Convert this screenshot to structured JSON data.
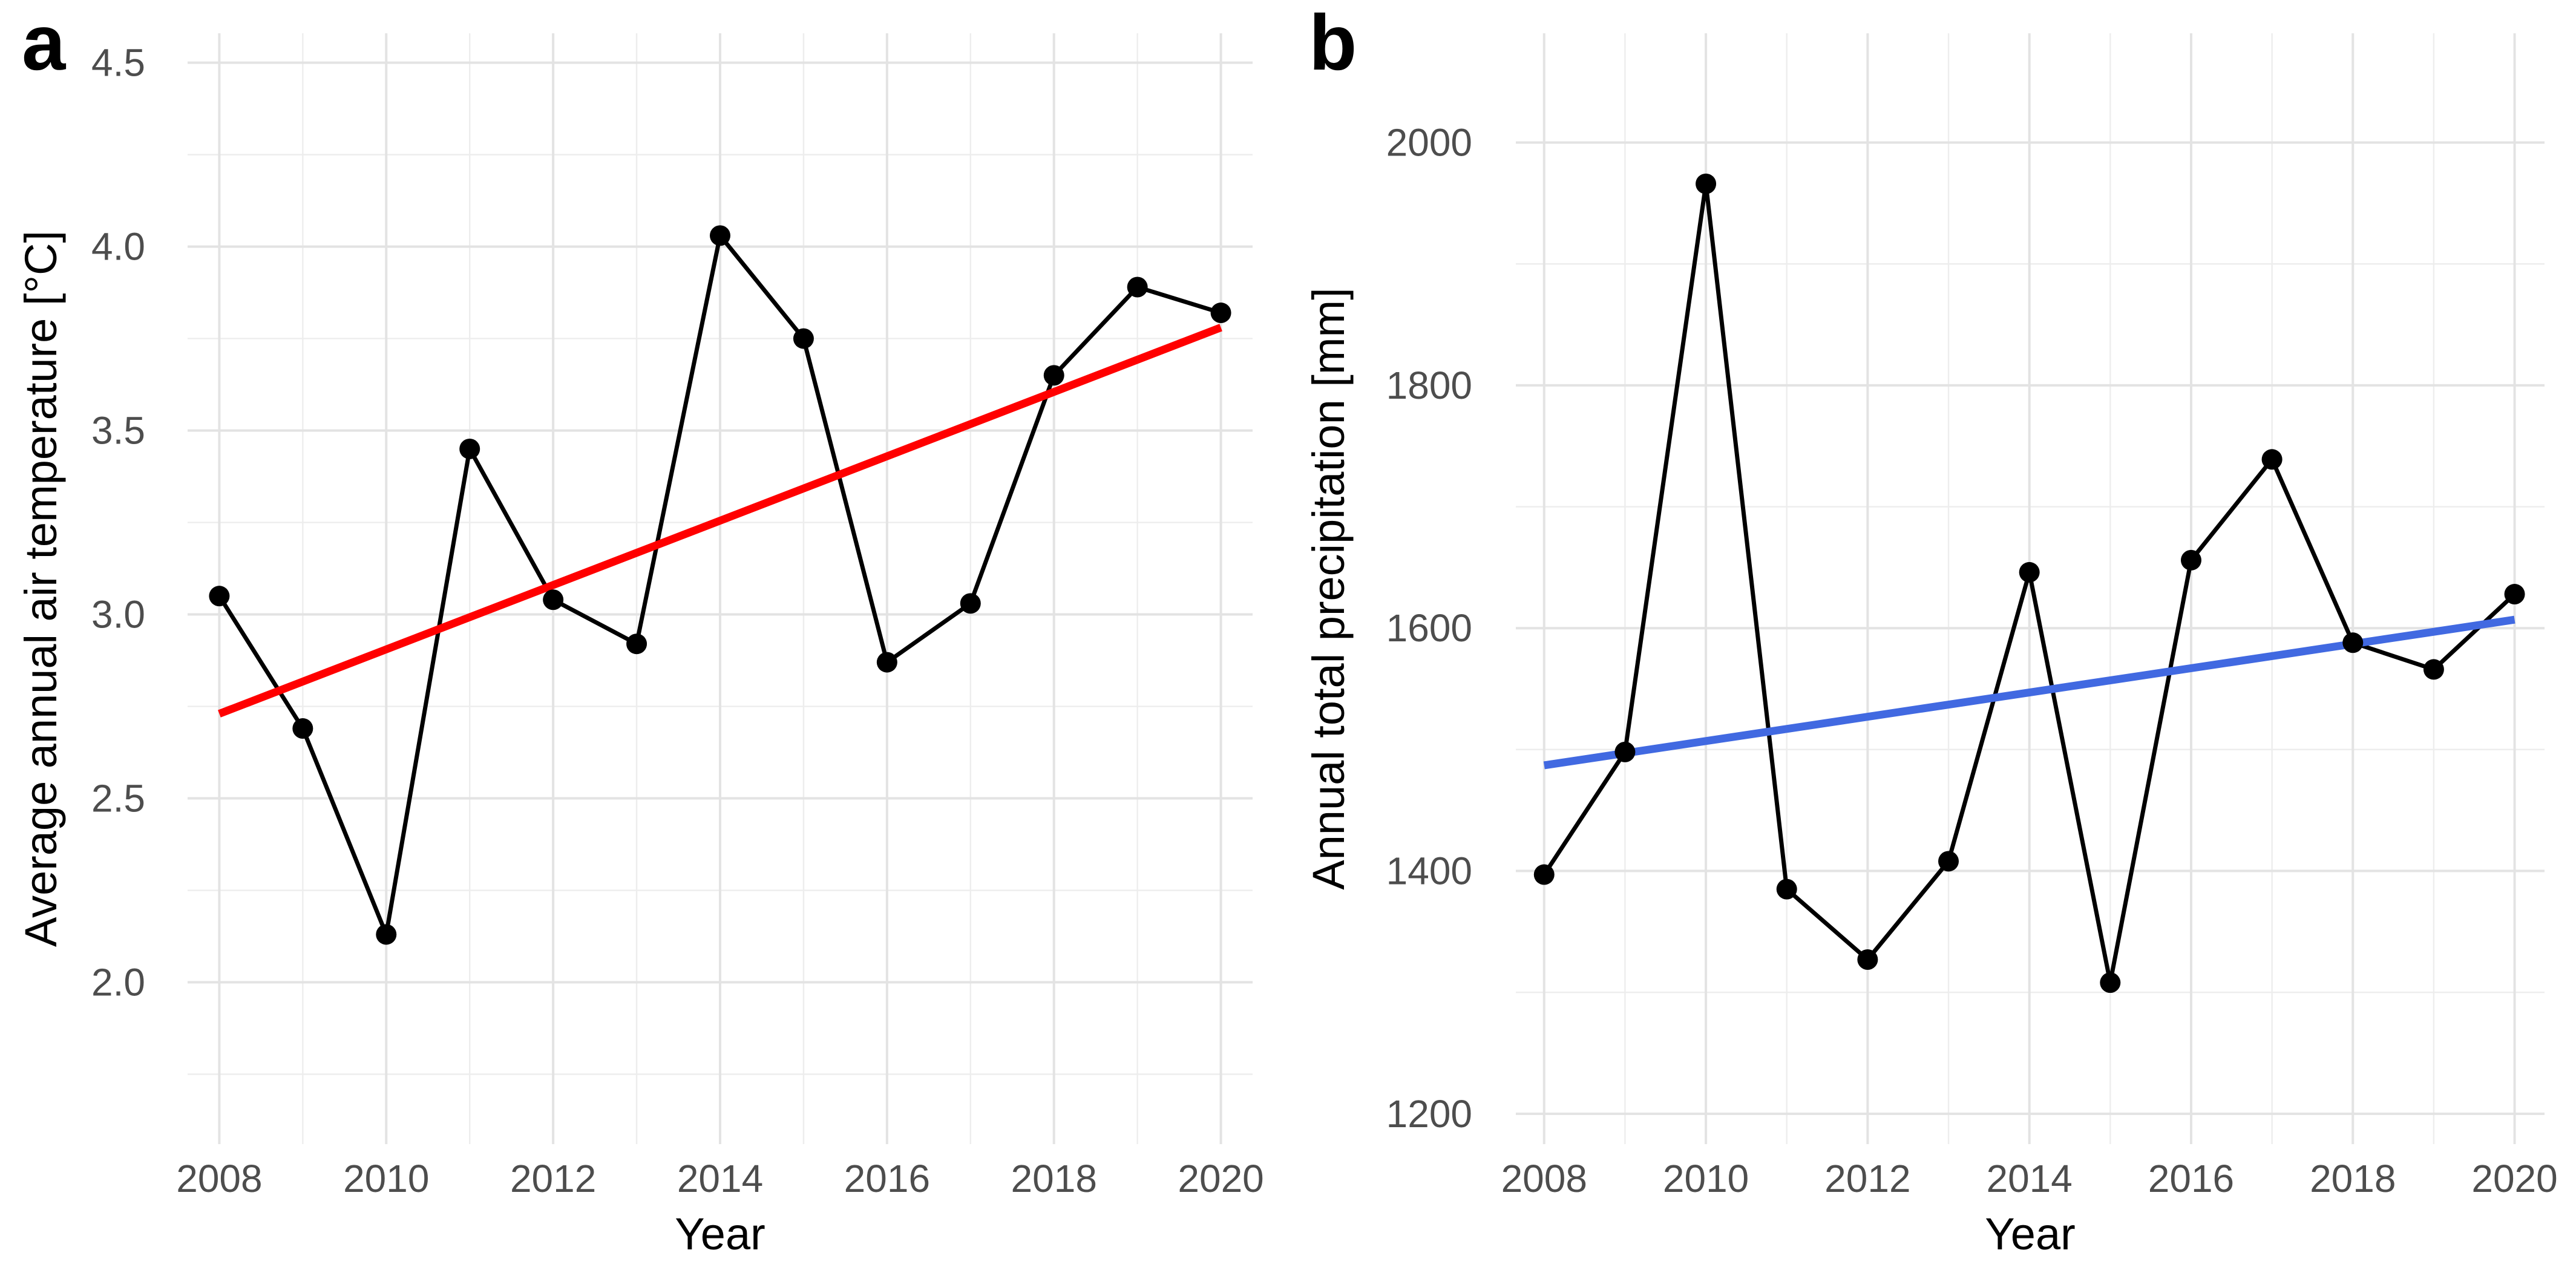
{
  "figure": {
    "background": "#FFFFFF",
    "panels": [
      {
        "tag": "a",
        "x_label": "Year",
        "y_label": "Average annual air temperature [°C]"
      },
      {
        "tag": "b",
        "x_label": "Year",
        "y_label": "Annual total precipitation [mm]"
      }
    ]
  },
  "chart_data": [
    {
      "type": "line",
      "panel": "a",
      "title": "",
      "xlabel": "Year",
      "ylabel": "Average annual air temperature [°C]",
      "x": [
        2008,
        2009,
        2010,
        2011,
        2012,
        2013,
        2014,
        2015,
        2016,
        2017,
        2018,
        2019,
        2020
      ],
      "series": [
        {
          "name": "Average annual air temperature",
          "color": "#000000",
          "marker": "point",
          "values": [
            3.05,
            2.69,
            2.13,
            3.45,
            3.04,
            2.92,
            4.03,
            3.75,
            2.87,
            3.03,
            3.65,
            3.89,
            3.82
          ]
        }
      ],
      "trend": {
        "name": "Linear trend",
        "color": "#FF0000",
        "x_start": 2008,
        "y_start": 2.73,
        "x_end": 2020,
        "y_end": 3.78
      },
      "x_ticks": [
        2008,
        2010,
        2012,
        2014,
        2016,
        2018,
        2020
      ],
      "x_tick_labels": [
        "2008",
        "2010",
        "2012",
        "2014",
        "2016",
        "2018",
        "2020"
      ],
      "y_ticks": [
        2.0,
        2.5,
        3.0,
        3.5,
        4.0,
        4.5
      ],
      "y_tick_labels": [
        "2.0",
        "2.5",
        "3.0",
        "3.5",
        "4.0",
        "4.5"
      ],
      "xlim": [
        2007.62,
        2020.38
      ],
      "ylim": [
        1.56,
        4.58
      ],
      "grid": "major+minor",
      "legend": false
    },
    {
      "type": "line",
      "panel": "b",
      "title": "",
      "xlabel": "Year",
      "ylabel": "Annual total precipitation [mm]",
      "x": [
        2008,
        2009,
        2010,
        2011,
        2012,
        2013,
        2014,
        2015,
        2016,
        2017,
        2018,
        2019,
        2020
      ],
      "series": [
        {
          "name": "Annual total precipitation",
          "color": "#000000",
          "marker": "point",
          "values": [
            1397,
            1498,
            1966,
            1385,
            1327,
            1408,
            1646,
            1308,
            1656,
            1739,
            1588,
            1566,
            1628
          ]
        }
      ],
      "trend": {
        "name": "Linear trend",
        "color": "#4169E1",
        "x_start": 2008,
        "y_start": 1487,
        "x_end": 2020,
        "y_end": 1607
      },
      "x_ticks": [
        2008,
        2010,
        2012,
        2014,
        2016,
        2018,
        2020
      ],
      "x_tick_labels": [
        "2008",
        "2010",
        "2012",
        "2014",
        "2016",
        "2018",
        "2020"
      ],
      "y_ticks": [
        1200,
        1400,
        1600,
        1800,
        2000
      ],
      "y_tick_labels": [
        "1200",
        "1400",
        "1600",
        "1800",
        "2000"
      ],
      "xlim": [
        2007.65,
        2020.37
      ],
      "ylim": [
        1175,
        2090
      ],
      "grid": "major+minor",
      "legend": false
    }
  ]
}
